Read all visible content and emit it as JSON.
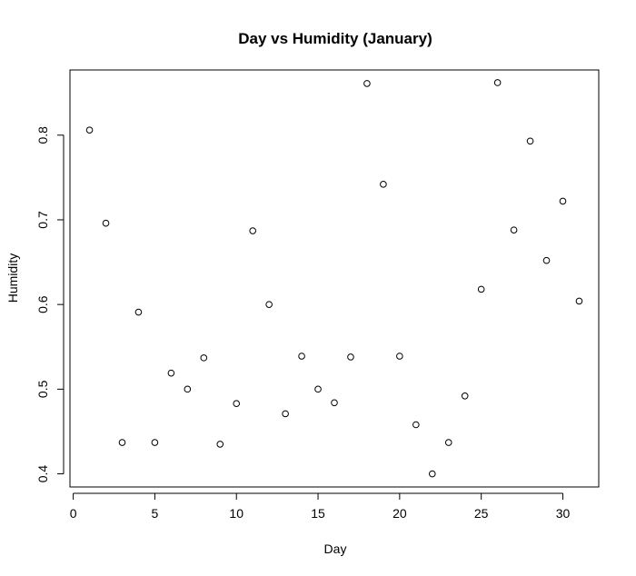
{
  "chart_data": {
    "type": "scatter",
    "title": "Day vs Humidity (January)",
    "xlabel": "Day",
    "ylabel": "Humidity",
    "xlim": [
      -0.2,
      32.2
    ],
    "ylim": [
      0.3845,
      0.877
    ],
    "xticks": [
      0,
      5,
      10,
      15,
      20,
      25,
      30
    ],
    "yticks": [
      0.4,
      0.5,
      0.6,
      0.7,
      0.8
    ],
    "xtick_labels": [
      "0",
      "5",
      "10",
      "15",
      "20",
      "25",
      "30"
    ],
    "ytick_labels": [
      "0.4",
      "0.5",
      "0.6",
      "0.7",
      "0.8"
    ],
    "grid": false,
    "legend": false,
    "marker": "open-circle",
    "marker_color": "#000000",
    "x": [
      1,
      2,
      3,
      4,
      5,
      6,
      7,
      8,
      9,
      10,
      11,
      12,
      13,
      14,
      15,
      16,
      17,
      18,
      19,
      20,
      21,
      22,
      23,
      24,
      25,
      26,
      27,
      28,
      29,
      30,
      31
    ],
    "y": [
      0.806,
      0.696,
      0.437,
      0.591,
      0.437,
      0.519,
      0.5,
      0.537,
      0.435,
      0.483,
      0.687,
      0.6,
      0.471,
      0.539,
      0.5,
      0.484,
      0.538,
      0.861,
      0.742,
      0.539,
      0.458,
      0.4,
      0.437,
      0.492,
      0.618,
      0.862,
      0.688,
      0.793,
      0.652,
      0.722,
      0.604
    ]
  }
}
